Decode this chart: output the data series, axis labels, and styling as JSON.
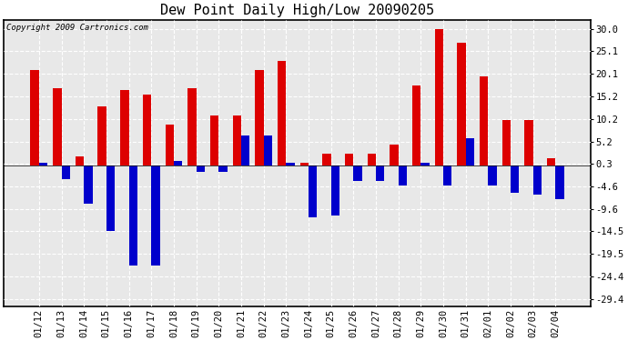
{
  "title": "Dew Point Daily High/Low 20090205",
  "copyright": "Copyright 2009 Cartronics.com",
  "dates": [
    "01/12",
    "01/13",
    "01/14",
    "01/15",
    "01/16",
    "01/17",
    "01/18",
    "01/19",
    "01/20",
    "01/21",
    "01/22",
    "01/23",
    "01/24",
    "01/25",
    "01/26",
    "01/27",
    "01/28",
    "01/29",
    "01/30",
    "01/31",
    "02/01",
    "02/02",
    "02/03",
    "02/04"
  ],
  "highs": [
    21.0,
    17.0,
    2.0,
    13.0,
    16.5,
    15.5,
    9.0,
    17.0,
    11.0,
    11.0,
    21.0,
    23.0,
    0.5,
    2.5,
    2.5,
    2.5,
    4.5,
    17.5,
    30.0,
    27.0,
    19.5,
    10.0,
    10.0,
    1.5
  ],
  "lows": [
    0.5,
    -3.0,
    -8.5,
    -14.5,
    -22.0,
    -22.0,
    1.0,
    -1.5,
    -1.5,
    6.5,
    6.5,
    0.5,
    -11.5,
    -11.0,
    -3.5,
    -3.5,
    -4.5,
    0.5,
    -4.5,
    6.0,
    -4.5,
    -6.0,
    -6.5,
    -7.5
  ],
  "high_color": "#dd0000",
  "low_color": "#0000cc",
  "bg_color": "#ffffff",
  "plot_bg_color": "#e8e8e8",
  "grid_color": "#ffffff",
  "yticks": [
    30.0,
    25.1,
    20.1,
    15.2,
    10.2,
    5.2,
    0.3,
    -4.6,
    -9.6,
    -14.5,
    -19.5,
    -24.4,
    -29.4
  ],
  "ylim": [
    -31,
    32
  ],
  "bar_width": 0.38,
  "title_fontsize": 11,
  "tick_fontsize": 7.5,
  "copyright_fontsize": 6.5
}
